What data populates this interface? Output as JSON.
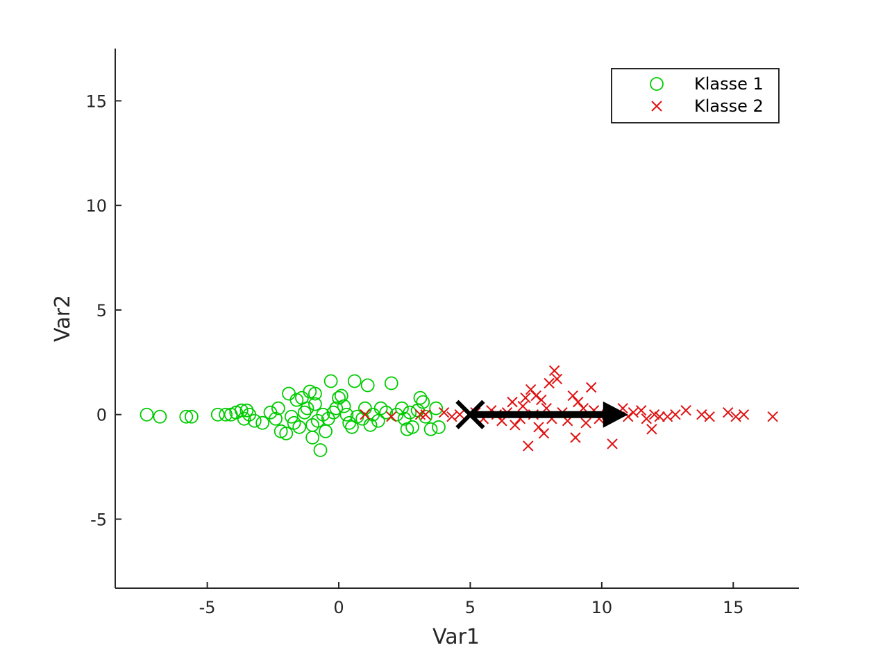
{
  "chart_data": {
    "type": "scatter",
    "title": "",
    "xlabel": "Var1",
    "ylabel": "Var2",
    "xlim": [
      -8.5,
      17.5
    ],
    "ylim": [
      -8.3,
      17.5
    ],
    "xticks": [
      -5,
      0,
      5,
      10,
      15
    ],
    "yticks": [
      -5,
      0,
      5,
      10,
      15
    ],
    "xtick_labels": [
      "-5",
      "0",
      "5",
      "10",
      "15"
    ],
    "ytick_labels": [
      "-5",
      "0",
      "5",
      "10",
      "15"
    ],
    "grid": false,
    "box": "left-bottom axes only",
    "legend_position": "top-right",
    "series": [
      {
        "name": "Klasse 1",
        "marker": "circle",
        "color": "#00cc00",
        "points": [
          [
            -7.3,
            0.0
          ],
          [
            -6.8,
            -0.1
          ],
          [
            -5.8,
            -0.1
          ],
          [
            -5.6,
            -0.1
          ],
          [
            -4.6,
            0.0
          ],
          [
            -4.3,
            0.0
          ],
          [
            -4.1,
            0.0
          ],
          [
            -3.9,
            0.1
          ],
          [
            -3.7,
            0.2
          ],
          [
            -3.6,
            -0.2
          ],
          [
            -3.5,
            0.2
          ],
          [
            -3.4,
            0.0
          ],
          [
            -3.2,
            -0.3
          ],
          [
            -2.9,
            -0.4
          ],
          [
            -2.6,
            0.1
          ],
          [
            -2.4,
            -0.2
          ],
          [
            -2.3,
            0.3
          ],
          [
            -2.2,
            -0.8
          ],
          [
            -2.0,
            -0.9
          ],
          [
            -1.9,
            1.0
          ],
          [
            -1.8,
            -0.1
          ],
          [
            -1.7,
            -0.4
          ],
          [
            -1.6,
            0.7
          ],
          [
            -1.5,
            -0.6
          ],
          [
            -1.4,
            0.8
          ],
          [
            -1.3,
            0.1
          ],
          [
            -1.2,
            0.3
          ],
          [
            -1.1,
            1.1
          ],
          [
            -1.0,
            -0.5
          ],
          [
            -1.0,
            -1.1
          ],
          [
            -0.9,
            0.5
          ],
          [
            -0.9,
            1.0
          ],
          [
            -0.8,
            -0.3
          ],
          [
            -0.7,
            -1.7
          ],
          [
            -0.6,
            0.0
          ],
          [
            -0.5,
            -0.8
          ],
          [
            -0.4,
            -0.2
          ],
          [
            -0.3,
            1.6
          ],
          [
            -0.2,
            0.1
          ],
          [
            -0.1,
            0.3
          ],
          [
            0.0,
            0.8
          ],
          [
            0.1,
            0.9
          ],
          [
            0.2,
            0.4
          ],
          [
            0.3,
            0.0
          ],
          [
            0.4,
            -0.4
          ],
          [
            0.5,
            -0.6
          ],
          [
            0.6,
            1.6
          ],
          [
            0.7,
            -0.1
          ],
          [
            0.9,
            -0.2
          ],
          [
            1.0,
            0.3
          ],
          [
            1.1,
            1.4
          ],
          [
            1.2,
            -0.5
          ],
          [
            1.3,
            0.0
          ],
          [
            1.5,
            -0.3
          ],
          [
            1.6,
            0.3
          ],
          [
            1.8,
            0.1
          ],
          [
            2.0,
            1.5
          ],
          [
            2.2,
            0.0
          ],
          [
            2.4,
            0.3
          ],
          [
            2.5,
            -0.2
          ],
          [
            2.6,
            -0.7
          ],
          [
            2.7,
            0.1
          ],
          [
            2.8,
            -0.6
          ],
          [
            3.0,
            0.2
          ],
          [
            3.1,
            0.8
          ],
          [
            3.2,
            0.6
          ],
          [
            3.3,
            -0.1
          ],
          [
            3.5,
            -0.7
          ],
          [
            3.7,
            0.3
          ],
          [
            3.8,
            -0.6
          ]
        ]
      },
      {
        "name": "Klasse 2",
        "marker": "x",
        "color": "#e01010",
        "points": [
          [
            1.0,
            0.0
          ],
          [
            2.0,
            -0.1
          ],
          [
            3.1,
            0.0
          ],
          [
            3.3,
            0.0
          ],
          [
            4.0,
            0.1
          ],
          [
            4.3,
            -0.1
          ],
          [
            4.6,
            0.0
          ],
          [
            5.2,
            0.1
          ],
          [
            5.5,
            -0.2
          ],
          [
            5.8,
            0.2
          ],
          [
            6.0,
            0.0
          ],
          [
            6.2,
            -0.3
          ],
          [
            6.4,
            0.1
          ],
          [
            6.6,
            0.6
          ],
          [
            6.7,
            -0.5
          ],
          [
            6.9,
            -0.2
          ],
          [
            7.0,
            0.4
          ],
          [
            7.1,
            0.8
          ],
          [
            7.2,
            -1.5
          ],
          [
            7.3,
            1.2
          ],
          [
            7.4,
            0.0
          ],
          [
            7.5,
            0.9
          ],
          [
            7.6,
            -0.6
          ],
          [
            7.7,
            0.7
          ],
          [
            7.8,
            -0.9
          ],
          [
            7.9,
            0.3
          ],
          [
            8.0,
            1.5
          ],
          [
            8.1,
            -0.2
          ],
          [
            8.2,
            2.1
          ],
          [
            8.3,
            1.7
          ],
          [
            8.5,
            0.1
          ],
          [
            8.7,
            -0.3
          ],
          [
            8.9,
            0.9
          ],
          [
            9.0,
            -1.1
          ],
          [
            9.1,
            0.6
          ],
          [
            9.3,
            0.3
          ],
          [
            9.4,
            -0.4
          ],
          [
            9.6,
            1.3
          ],
          [
            9.7,
            0.2
          ],
          [
            9.9,
            -0.2
          ],
          [
            10.2,
            0.0
          ],
          [
            10.4,
            -1.4
          ],
          [
            10.8,
            0.3
          ],
          [
            11.0,
            -0.1
          ],
          [
            11.2,
            0.1
          ],
          [
            11.5,
            0.2
          ],
          [
            11.7,
            -0.2
          ],
          [
            11.9,
            -0.7
          ],
          [
            12.0,
            0.0
          ],
          [
            12.2,
            -0.1
          ],
          [
            12.5,
            -0.1
          ],
          [
            12.8,
            0.0
          ],
          [
            13.2,
            0.2
          ],
          [
            13.8,
            0.0
          ],
          [
            14.1,
            -0.1
          ],
          [
            14.8,
            0.1
          ],
          [
            15.1,
            -0.1
          ],
          [
            15.4,
            0.0
          ],
          [
            16.5,
            -0.1
          ]
        ]
      }
    ],
    "annotations": [
      {
        "type": "cross-marker",
        "color": "#000000",
        "point": [
          5.0,
          0.0
        ]
      },
      {
        "type": "arrow",
        "color": "#000000",
        "from": [
          5.0,
          0.0
        ],
        "to": [
          11.0,
          0.0
        ]
      }
    ]
  },
  "legend": {
    "entries": [
      "Klasse 1",
      "Klasse 2"
    ]
  }
}
